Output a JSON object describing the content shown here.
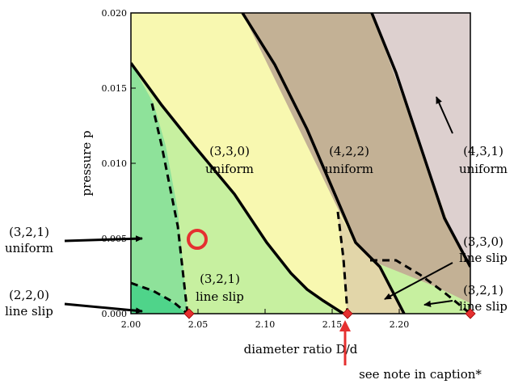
{
  "figure": {
    "xlabel": "diameter ratio D/d",
    "ylabel": "pressure p",
    "x_ticks": [
      "2.00",
      "2.05",
      "2.10",
      "2.15",
      "2.20"
    ],
    "y_ticks": [
      "0.000",
      "0.005",
      "0.010",
      "0.015",
      "0.020"
    ],
    "footnote": "see note in caption*"
  },
  "regions": [
    {
      "id": "uniform_330",
      "structure": "(3,3,0)",
      "mode": "uniform"
    },
    {
      "id": "uniform_422",
      "structure": "(4,2,2)",
      "mode": "uniform"
    },
    {
      "id": "uniform_431",
      "structure": "(4,3,1)",
      "mode": "uniform"
    },
    {
      "id": "uniform_321",
      "structure": "(3,2,1)",
      "mode": "uniform"
    },
    {
      "id": "lineslip_321_inner",
      "structure": "(3,2,1)",
      "mode": "line slip"
    },
    {
      "id": "lineslip_220",
      "structure": "(2,2,0)",
      "mode": "line slip"
    },
    {
      "id": "lineslip_330",
      "structure": "(3,3,0)",
      "mode": "line slip"
    },
    {
      "id": "lineslip_321_right",
      "structure": "(3,2,1)",
      "mode": "line slip"
    }
  ],
  "colors": {
    "yellow": "#f8f8b0",
    "tan": "#c3b195",
    "mauve": "#ddd0cf",
    "green_dark": "#4fd48a",
    "green_mid": "#8ee29a",
    "green_light": "#c7f0a0",
    "tan_light": "#e2d6a9",
    "marker": "#e53030"
  }
}
